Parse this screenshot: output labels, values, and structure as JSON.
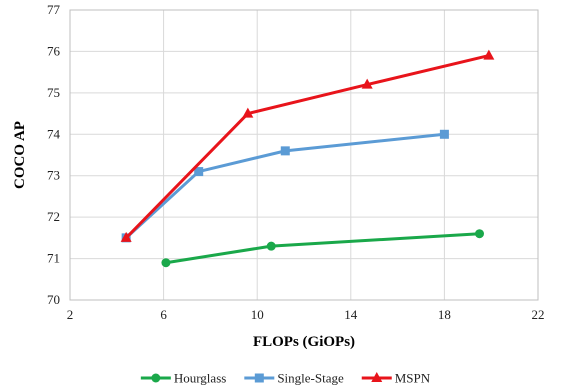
{
  "chart_data": {
    "type": "line",
    "title": "",
    "xlabel": "FLOPs (GiOPs)",
    "ylabel": "COCO AP",
    "xlim": [
      2,
      22
    ],
    "ylim": [
      70,
      77
    ],
    "xticks": [
      2,
      6,
      10,
      14,
      18,
      22
    ],
    "yticks": [
      70,
      71,
      72,
      73,
      74,
      75,
      76,
      77
    ],
    "grid": "both",
    "legend_position": "bottom",
    "series": [
      {
        "name": "Hourglass",
        "color": "#1aa84a",
        "marker": "circle",
        "points": [
          {
            "x": 6.1,
            "y": 70.9
          },
          {
            "x": 10.6,
            "y": 71.3
          },
          {
            "x": 19.5,
            "y": 71.6
          }
        ]
      },
      {
        "name": "Single-Stage",
        "color": "#5b9bd5",
        "marker": "square",
        "points": [
          {
            "x": 4.4,
            "y": 71.5
          },
          {
            "x": 7.5,
            "y": 73.1
          },
          {
            "x": 11.2,
            "y": 73.6
          },
          {
            "x": 18.0,
            "y": 74.0
          }
        ]
      },
      {
        "name": "MSPN",
        "color": "#e8141b",
        "marker": "triangle",
        "points": [
          {
            "x": 4.4,
            "y": 71.5
          },
          {
            "x": 9.6,
            "y": 74.5
          },
          {
            "x": 14.7,
            "y": 75.2
          },
          {
            "x": 19.9,
            "y": 75.9
          }
        ]
      }
    ]
  }
}
